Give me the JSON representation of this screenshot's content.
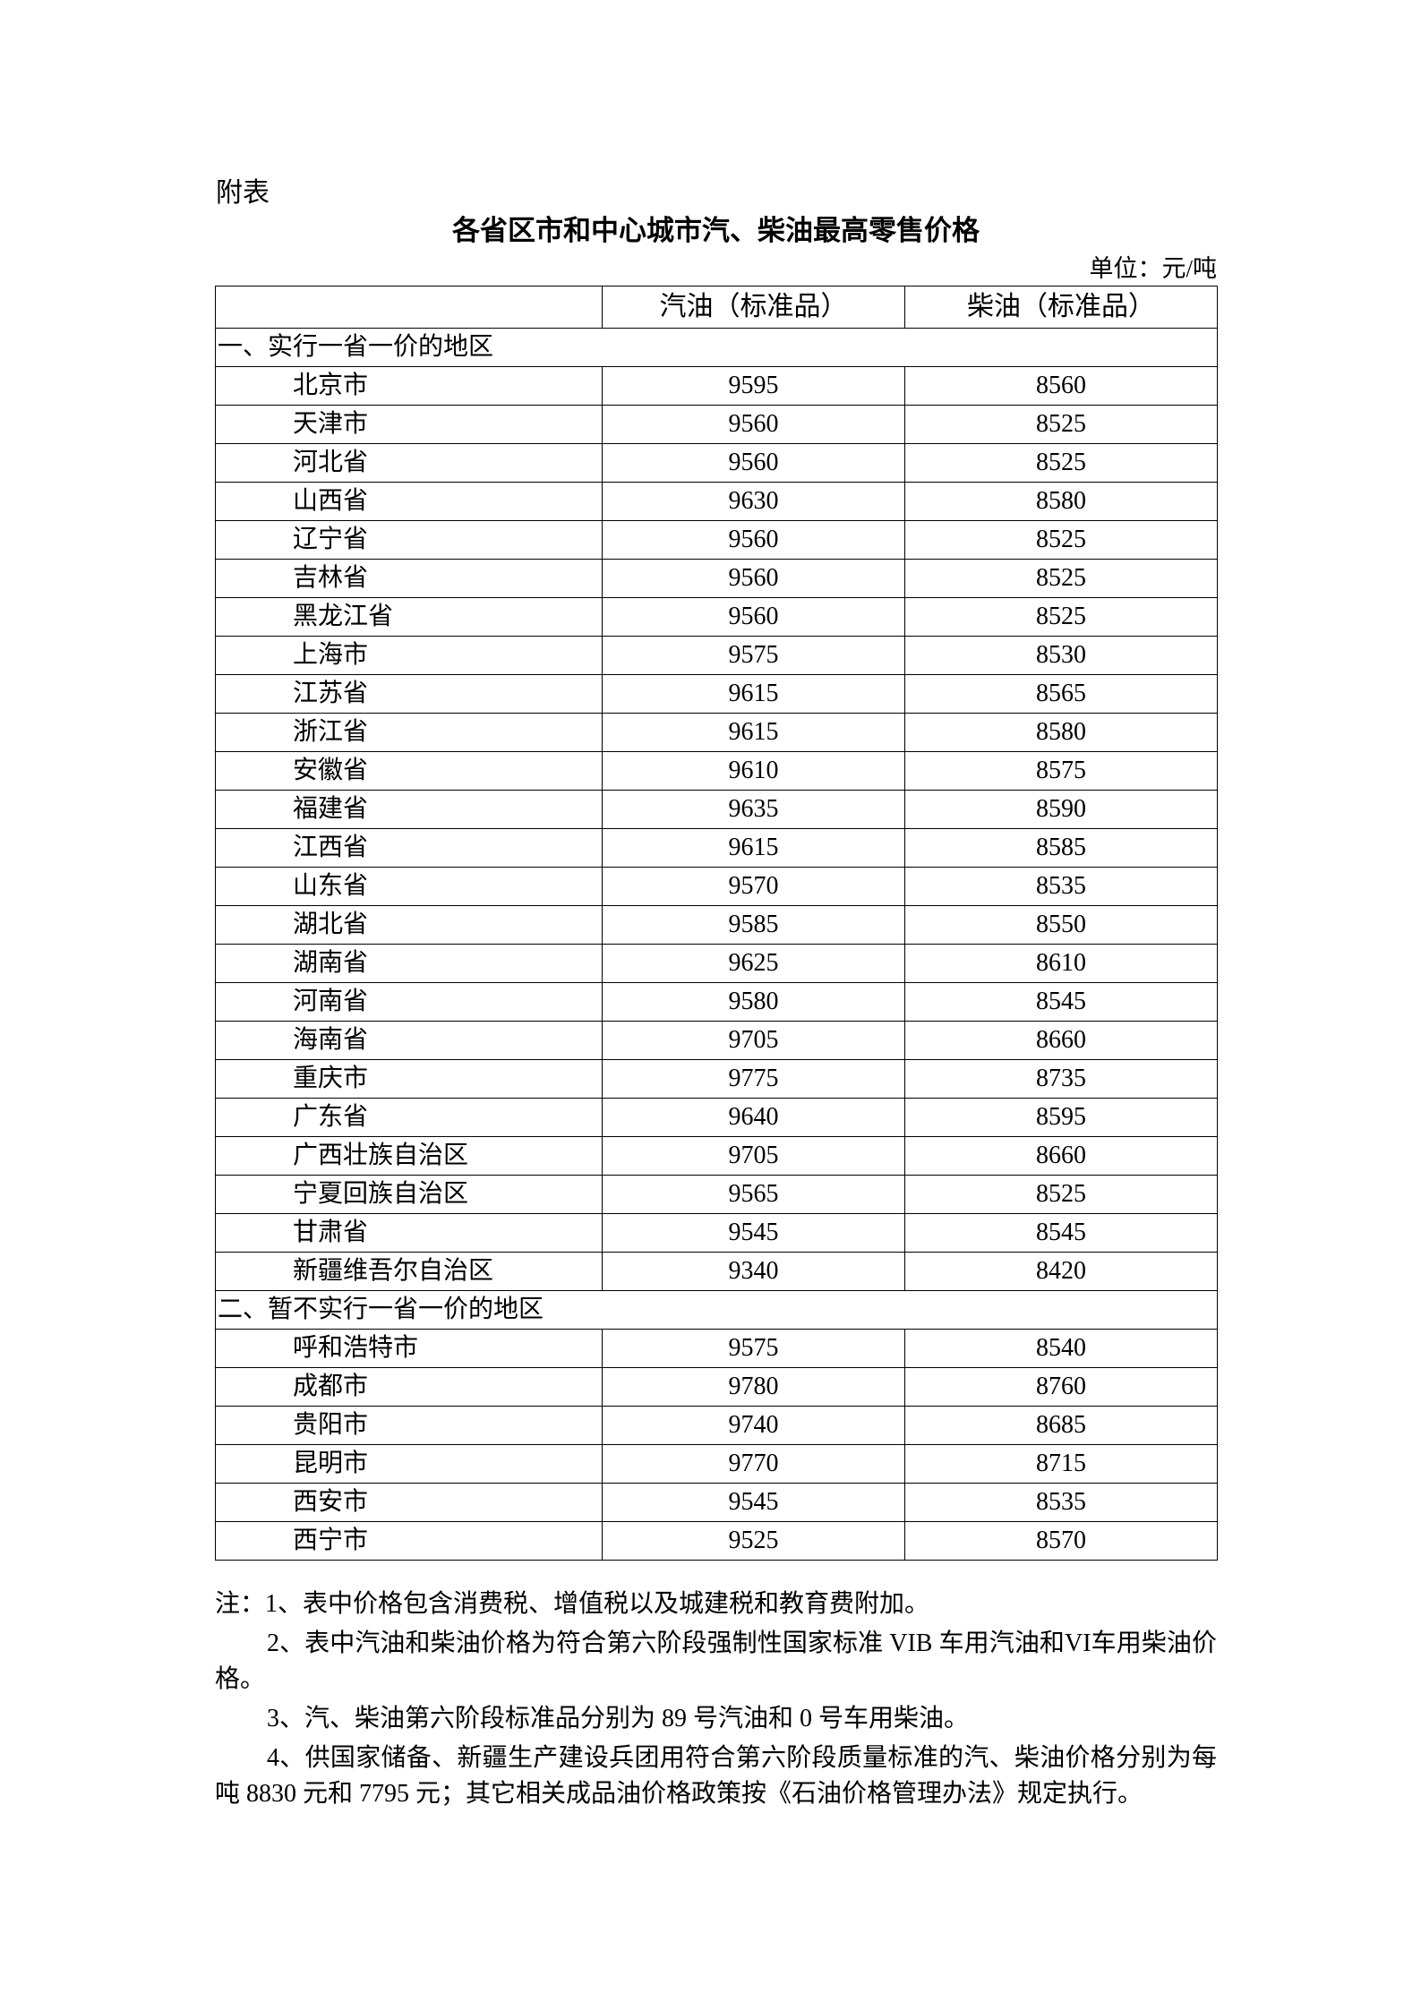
{
  "header": {
    "label": "附表",
    "title": "各省区市和中心城市汽、柴油最高零售价格",
    "unit": "单位：元/吨"
  },
  "table": {
    "columns": [
      "汽油（标准品）",
      "柴油（标准品）"
    ],
    "sections": [
      {
        "title": "一、实行一省一价的地区",
        "rows": [
          [
            "北京市",
            9595,
            8560
          ],
          [
            "天津市",
            9560,
            8525
          ],
          [
            "河北省",
            9560,
            8525
          ],
          [
            "山西省",
            9630,
            8580
          ],
          [
            "辽宁省",
            9560,
            8525
          ],
          [
            "吉林省",
            9560,
            8525
          ],
          [
            "黑龙江省",
            9560,
            8525
          ],
          [
            "上海市",
            9575,
            8530
          ],
          [
            "江苏省",
            9615,
            8565
          ],
          [
            "浙江省",
            9615,
            8580
          ],
          [
            "安徽省",
            9610,
            8575
          ],
          [
            "福建省",
            9635,
            8590
          ],
          [
            "江西省",
            9615,
            8585
          ],
          [
            "山东省",
            9570,
            8535
          ],
          [
            "湖北省",
            9585,
            8550
          ],
          [
            "湖南省",
            9625,
            8610
          ],
          [
            "河南省",
            9580,
            8545
          ],
          [
            "海南省",
            9705,
            8660
          ],
          [
            "重庆市",
            9775,
            8735
          ],
          [
            "广东省",
            9640,
            8595
          ],
          [
            "广西壮族自治区",
            9705,
            8660
          ],
          [
            "宁夏回族自治区",
            9565,
            8525
          ],
          [
            "甘肃省",
            9545,
            8545
          ],
          [
            "新疆维吾尔自治区",
            9340,
            8420
          ]
        ]
      },
      {
        "title": "二、暂不实行一省一价的地区",
        "rows": [
          [
            "呼和浩特市",
            9575,
            8540
          ],
          [
            "成都市",
            9780,
            8760
          ],
          [
            "贵阳市",
            9740,
            8685
          ],
          [
            "昆明市",
            9770,
            8715
          ],
          [
            "西安市",
            9545,
            8535
          ],
          [
            "西宁市",
            9525,
            8570
          ]
        ]
      }
    ]
  },
  "notes": [
    "注：1、表中价格包含消费税、增值税以及城建税和教育费附加。",
    "2、表中汽油和柴油价格为符合第六阶段强制性国家标准 VIB 车用汽油和VI车用柴油价格。",
    "3、汽、柴油第六阶段标准品分别为 89 号汽油和 0 号车用柴油。",
    "4、供国家储备、新疆生产建设兵团用符合第六阶段质量标准的汽、柴油价格分别为每吨 8830 元和 7795 元；其它相关成品油价格政策按《石油价格管理办法》规定执行。"
  ]
}
